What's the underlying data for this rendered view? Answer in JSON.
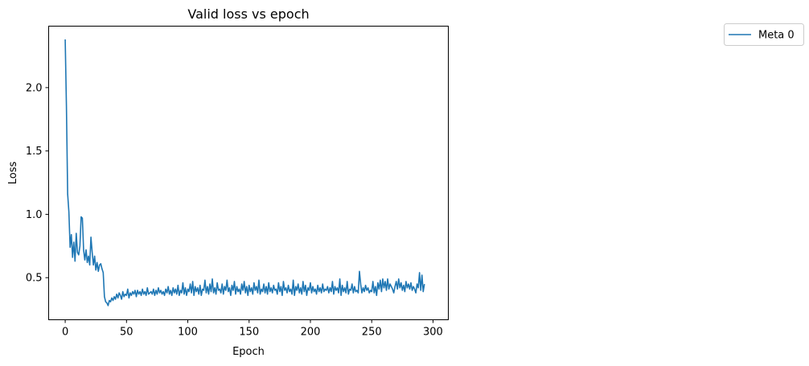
{
  "chart_data": {
    "type": "line",
    "title": "Valid loss vs epoch",
    "xlabel": "Epoch",
    "ylabel": "Loss",
    "xlim": [
      -13.5,
      312.5
    ],
    "ylim": [
      0.168,
      2.485
    ],
    "xticks": [
      0,
      50,
      100,
      150,
      200,
      250,
      300
    ],
    "yticks": [
      0.5,
      1.0,
      1.5,
      2.0
    ],
    "xtick_labels": [
      "0",
      "50",
      "100",
      "150",
      "200",
      "250",
      "300"
    ],
    "ytick_labels": [
      "0.5",
      "1.0",
      "1.5",
      "2.0"
    ],
    "grid": false,
    "legend_position": "upper-right, outside the plot",
    "colors": {
      "series": "#1f77b4"
    },
    "series": [
      {
        "name": "Meta 0",
        "x_start": 0,
        "x_step": 1,
        "values": [
          2.38,
          1.85,
          1.16,
          1.02,
          0.74,
          0.84,
          0.66,
          0.78,
          0.63,
          0.85,
          0.7,
          0.68,
          0.75,
          0.98,
          0.97,
          0.72,
          0.64,
          0.72,
          0.62,
          0.67,
          0.6,
          0.82,
          0.7,
          0.6,
          0.67,
          0.56,
          0.62,
          0.55,
          0.6,
          0.61,
          0.57,
          0.54,
          0.35,
          0.31,
          0.3,
          0.28,
          0.32,
          0.31,
          0.34,
          0.32,
          0.35,
          0.33,
          0.37,
          0.34,
          0.38,
          0.36,
          0.33,
          0.39,
          0.35,
          0.37,
          0.36,
          0.41,
          0.34,
          0.38,
          0.36,
          0.39,
          0.37,
          0.4,
          0.35,
          0.4,
          0.37,
          0.39,
          0.36,
          0.41,
          0.37,
          0.39,
          0.36,
          0.42,
          0.37,
          0.38,
          0.39,
          0.37,
          0.41,
          0.36,
          0.4,
          0.37,
          0.42,
          0.38,
          0.4,
          0.37,
          0.39,
          0.36,
          0.41,
          0.38,
          0.43,
          0.37,
          0.4,
          0.36,
          0.42,
          0.38,
          0.41,
          0.37,
          0.44,
          0.36,
          0.4,
          0.38,
          0.46,
          0.37,
          0.42,
          0.36,
          0.41,
          0.39,
          0.45,
          0.38,
          0.47,
          0.36,
          0.43,
          0.39,
          0.42,
          0.37,
          0.44,
          0.36,
          0.41,
          0.4,
          0.48,
          0.38,
          0.43,
          0.37,
          0.45,
          0.39,
          0.49,
          0.38,
          0.42,
          0.37,
          0.46,
          0.4,
          0.41,
          0.38,
          0.45,
          0.37,
          0.43,
          0.4,
          0.48,
          0.39,
          0.42,
          0.36,
          0.44,
          0.4,
          0.47,
          0.37,
          0.43,
          0.39,
          0.41,
          0.37,
          0.45,
          0.4,
          0.47,
          0.38,
          0.43,
          0.36,
          0.44,
          0.39,
          0.42,
          0.37,
          0.46,
          0.4,
          0.43,
          0.38,
          0.48,
          0.37,
          0.41,
          0.39,
          0.45,
          0.38,
          0.43,
          0.37,
          0.46,
          0.39,
          0.42,
          0.38,
          0.44,
          0.4,
          0.41,
          0.37,
          0.46,
          0.39,
          0.43,
          0.36,
          0.47,
          0.4,
          0.42,
          0.38,
          0.44,
          0.39,
          0.41,
          0.37,
          0.48,
          0.36,
          0.43,
          0.4,
          0.45,
          0.38,
          0.42,
          0.37,
          0.47,
          0.39,
          0.44,
          0.36,
          0.42,
          0.4,
          0.46,
          0.38,
          0.43,
          0.39,
          0.41,
          0.37,
          0.44,
          0.39,
          0.42,
          0.38,
          0.45,
          0.39,
          0.41,
          0.4,
          0.43,
          0.38,
          0.42,
          0.39,
          0.47,
          0.37,
          0.43,
          0.4,
          0.42,
          0.38,
          0.49,
          0.36,
          0.44,
          0.39,
          0.42,
          0.38,
          0.47,
          0.37,
          0.41,
          0.4,
          0.45,
          0.38,
          0.43,
          0.39,
          0.4,
          0.38,
          0.55,
          0.45,
          0.38,
          0.42,
          0.39,
          0.44,
          0.4,
          0.42,
          0.38,
          0.4,
          0.39,
          0.47,
          0.38,
          0.43,
          0.36,
          0.46,
          0.41,
          0.48,
          0.39,
          0.49,
          0.42,
          0.47,
          0.4,
          0.49,
          0.41,
          0.45,
          0.43,
          0.41,
          0.38,
          0.43,
          0.47,
          0.41,
          0.49,
          0.42,
          0.46,
          0.4,
          0.44,
          0.39,
          0.47,
          0.42,
          0.45,
          0.41,
          0.46,
          0.4,
          0.43,
          0.41,
          0.38,
          0.45,
          0.42,
          0.54,
          0.4,
          0.52,
          0.39,
          0.45
        ]
      }
    ]
  }
}
